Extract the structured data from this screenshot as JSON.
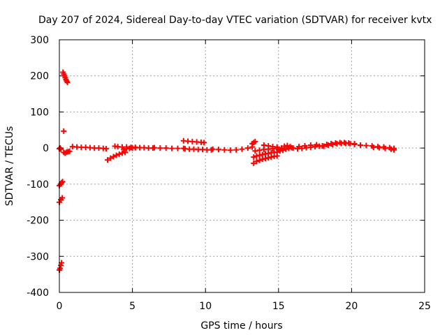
{
  "chart_data": {
    "type": "scatter",
    "title": "Day 207 of 2024, Sidereal Day-to-day VTEC variation (SDTVAR) for receiver kvtx",
    "xlabel": "GPS time / hours",
    "ylabel": "SDTVAR / TECUs",
    "xlim": [
      0,
      25
    ],
    "ylim": [
      -400,
      300
    ],
    "x_ticks": [
      "0",
      "5",
      "10",
      "15",
      "20",
      "25"
    ],
    "y_ticks": [
      "300",
      "200",
      "100",
      "0",
      "-100",
      "-200",
      "-300",
      "-400"
    ],
    "grid": true,
    "marker": "+",
    "color": "#ff0000",
    "segments": [
      {
        "x": [
          0.0,
          0.05,
          0.1,
          0.15
        ],
        "y": [
          -338,
          -333,
          -325,
          -318
        ]
      },
      {
        "x": [
          0.0,
          0.1,
          0.2
        ],
        "y": [
          -150,
          -143,
          -138
        ]
      },
      {
        "x": [
          0.0,
          0.08,
          0.15,
          0.22
        ],
        "y": [
          -104,
          -100,
          -96,
          -93
        ]
      },
      {
        "x": [
          0.3
        ],
        "y": [
          47
        ]
      },
      {
        "x": [
          0.25,
          0.3,
          0.35,
          0.4,
          0.45,
          0.5,
          0.55
        ],
        "y": [
          210,
          205,
          200,
          195,
          190,
          186,
          182
        ]
      },
      {
        "x": [
          0.0,
          0.05,
          0.1
        ],
        "y": [
          -2,
          0,
          -3
        ]
      },
      {
        "x": [
          0.3,
          0.4,
          0.5,
          0.6,
          0.7
        ],
        "y": [
          -12,
          -14,
          -11,
          -10,
          -9
        ]
      },
      {
        "x": [
          0.9,
          1.2,
          1.5,
          1.8,
          2.1,
          2.4,
          2.7,
          3.0,
          3.2
        ],
        "y": [
          4,
          3,
          2,
          2,
          1,
          0,
          0,
          -1,
          -2
        ]
      },
      {
        "x": [
          3.3,
          3.5,
          3.7,
          3.9,
          4.1,
          4.3,
          4.5
        ],
        "y": [
          -33,
          -28,
          -24,
          -20,
          -17,
          -14,
          -12
        ]
      },
      {
        "x": [
          3.8,
          4.0,
          4.3,
          4.6,
          4.9,
          5.2,
          5.5,
          5.8,
          6.1,
          6.4
        ],
        "y": [
          5,
          4,
          3,
          3,
          2,
          2,
          1,
          1,
          0,
          0
        ]
      },
      {
        "x": [
          4.4,
          4.6,
          4.8,
          5.0,
          5.2
        ],
        "y": [
          -3,
          -2,
          -1,
          0,
          1
        ]
      },
      {
        "x": [
          6.5,
          6.9,
          7.3,
          7.7,
          8.1,
          8.5
        ],
        "y": [
          1,
          0,
          0,
          -1,
          -1,
          -1
        ]
      },
      {
        "x": [
          8.5,
          8.8,
          9.1,
          9.4,
          9.7,
          9.9
        ],
        "y": [
          20,
          19,
          18,
          17,
          16,
          15
        ]
      },
      {
        "x": [
          8.6,
          8.9,
          9.2,
          9.5,
          9.8,
          10.1,
          10.4
        ],
        "y": [
          -2,
          -3,
          -3,
          -4,
          -4,
          -5,
          -5
        ]
      },
      {
        "x": [
          10.5,
          10.9,
          11.3,
          11.7,
          12.1,
          12.5,
          12.9,
          13.2
        ],
        "y": [
          -3,
          -4,
          -5,
          -6,
          -5,
          -3,
          0,
          3
        ]
      },
      {
        "x": [
          13.2,
          13.3,
          13.4
        ],
        "y": [
          12,
          15,
          18
        ]
      },
      {
        "x": [
          13.3,
          13.5,
          13.7,
          13.9,
          14.1,
          14.3,
          14.5,
          14.7,
          14.9
        ],
        "y": [
          -42,
          -37,
          -34,
          -31,
          -29,
          -27,
          -25,
          -23,
          -22
        ]
      },
      {
        "x": [
          13.3,
          13.5,
          13.7,
          13.9,
          14.1,
          14.3,
          14.5,
          14.7,
          14.9
        ],
        "y": [
          -25,
          -22,
          -20,
          -18,
          -16,
          -15,
          -13,
          -12,
          -11
        ]
      },
      {
        "x": [
          13.4,
          13.7,
          14.0,
          14.3,
          14.6,
          14.9
        ],
        "y": [
          -8,
          -6,
          -4,
          -3,
          -2,
          -1
        ]
      },
      {
        "x": [
          14.0,
          14.3,
          14.6,
          14.9
        ],
        "y": [
          8,
          6,
          4,
          3
        ]
      },
      {
        "x": [
          15.0,
          15.2,
          15.4,
          15.6,
          15.8,
          16.0
        ],
        "y": [
          -5,
          0,
          5,
          7,
          4,
          0
        ]
      },
      {
        "x": [
          15.1,
          15.3,
          15.5,
          15.7,
          15.9
        ],
        "y": [
          -8,
          -6,
          -3,
          -1,
          1
        ]
      },
      {
        "x": [
          16.3,
          16.6,
          16.9,
          17.2,
          17.5,
          17.8,
          18.0
        ],
        "y": [
          -2,
          -1,
          1,
          2,
          4,
          5,
          6
        ]
      },
      {
        "x": [
          16.4,
          16.8,
          17.2,
          17.6
        ],
        "y": [
          4,
          6,
          8,
          9
        ]
      },
      {
        "x": [
          18.1,
          18.4,
          18.7,
          19.0,
          19.3,
          19.6,
          19.9,
          20.2
        ],
        "y": [
          5,
          8,
          10,
          12,
          13,
          13,
          12,
          12
        ]
      },
      {
        "x": [
          18.3,
          18.6,
          18.9,
          19.2,
          19.5,
          19.8
        ],
        "y": [
          10,
          12,
          14,
          15,
          15,
          14
        ]
      },
      {
        "x": [
          20.2,
          20.6,
          21.0,
          21.4,
          21.8,
          22.2,
          22.6,
          22.9
        ],
        "y": [
          10,
          8,
          7,
          6,
          4,
          3,
          1,
          -1
        ]
      },
      {
        "x": [
          21.5,
          21.9,
          22.3,
          22.7,
          22.9
        ],
        "y": [
          2,
          1,
          -1,
          -3,
          -5
        ]
      }
    ]
  }
}
